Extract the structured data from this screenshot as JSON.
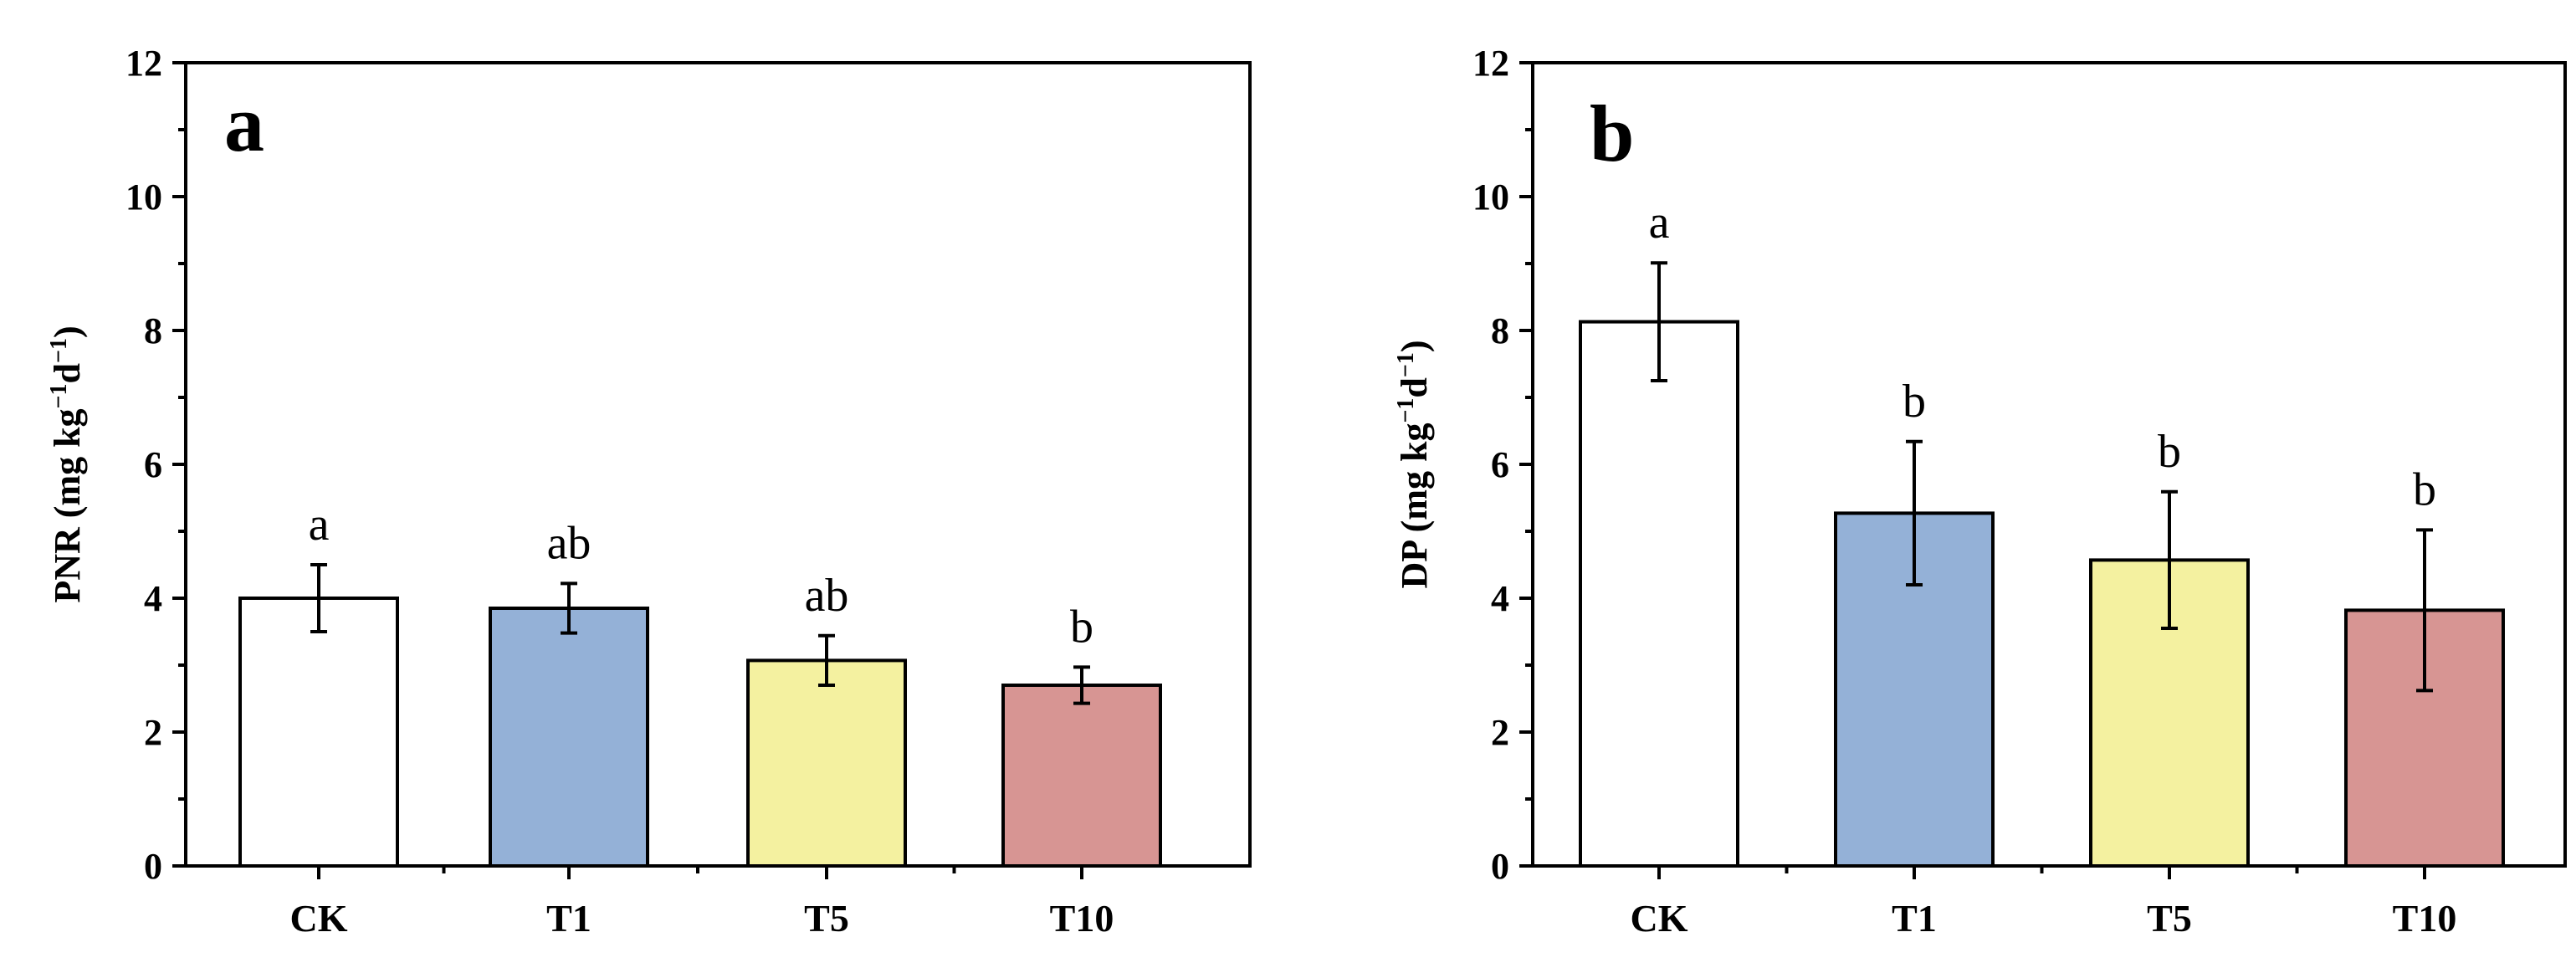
{
  "chart_data": [
    {
      "type": "bar",
      "panel_label": "a",
      "categories": [
        "CK",
        "T1",
        "T5",
        "T10"
      ],
      "values": [
        4.0,
        3.85,
        3.07,
        2.7
      ],
      "errors": [
        0.5,
        0.37,
        0.37,
        0.27
      ],
      "significance": [
        "a",
        "ab",
        "ab",
        "b"
      ],
      "colors": [
        "#ffffff",
        "#94b1d7",
        "#f4f1a0",
        "#d79593"
      ],
      "ylabel_main": "PNR (mg kg",
      "ylabel_sup1": "−1",
      "ylabel_mid": "d",
      "ylabel_sup2": "−1",
      "ylabel_end": ")",
      "ylim": [
        0,
        12
      ],
      "yticks": [
        "0",
        "2",
        "4",
        "6",
        "8",
        "10",
        "12"
      ],
      "grid": false
    },
    {
      "type": "bar",
      "panel_label": "b",
      "categories": [
        "CK",
        "T1",
        "T5",
        "T10"
      ],
      "values": [
        8.13,
        5.27,
        4.57,
        3.82
      ],
      "errors": [
        0.88,
        1.07,
        1.02,
        1.2
      ],
      "significance": [
        "a",
        "b",
        "b",
        "b"
      ],
      "colors": [
        "#ffffff",
        "#94b1d7",
        "#f4f1a0",
        "#d79593"
      ],
      "ylabel_main": "DP (mg kg",
      "ylabel_sup1": "−1",
      "ylabel_mid": "d",
      "ylabel_sup2": "−1",
      "ylabel_end": ")",
      "ylim": [
        0,
        12
      ],
      "yticks": [
        "0",
        "2",
        "4",
        "6",
        "8",
        "10",
        "12"
      ],
      "grid": false
    }
  ]
}
